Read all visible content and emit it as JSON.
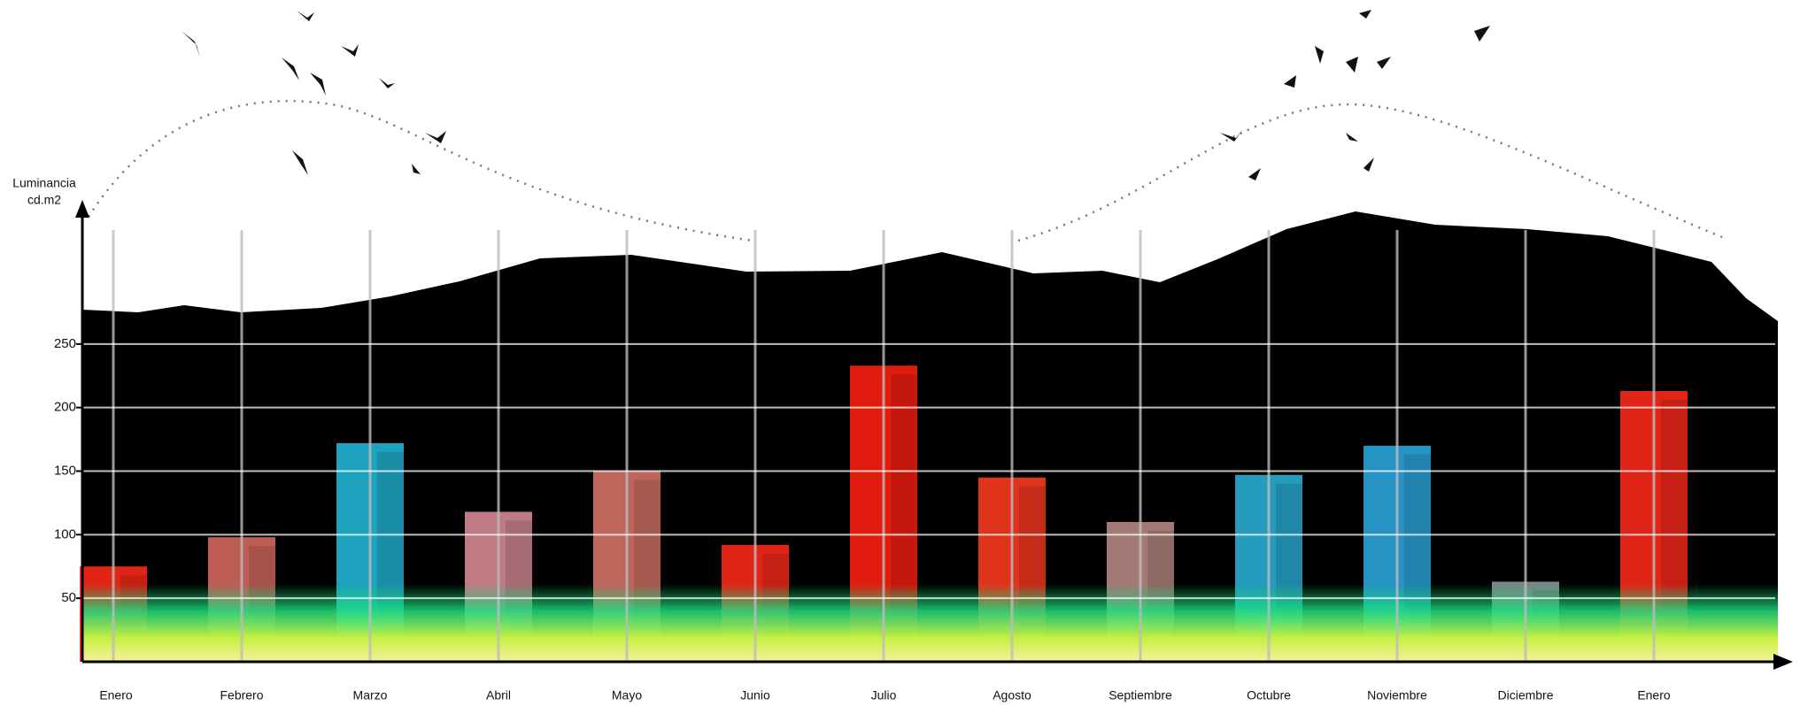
{
  "chart_data": {
    "type": "bar",
    "ylabel": [
      "Luminancia",
      "cd.m2"
    ],
    "categories": [
      "Enero",
      "Febrero",
      "Marzo",
      "Abril",
      "Mayo",
      "Junio",
      "Julio",
      "Agosto",
      "Septiembre",
      "Octubre",
      "Noviembre",
      "Diciembre",
      "Enero"
    ],
    "values": [
      75,
      98,
      172,
      118,
      150,
      92,
      233,
      145,
      110,
      147,
      170,
      63,
      213
    ],
    "colors": [
      "#ff2a1a",
      "#d86a60",
      "#22b8d8",
      "#d88c96",
      "#d87468",
      "#ff2a1a",
      "#ff2010",
      "#ff3a20",
      "#b88a84",
      "#2ab0d8",
      "#2aa8e0",
      "#8a9898",
      "#ff2a1a"
    ],
    "ylim": [
      0,
      355
    ],
    "yticks": [
      50,
      100,
      150,
      200,
      250
    ],
    "grid": true
  }
}
